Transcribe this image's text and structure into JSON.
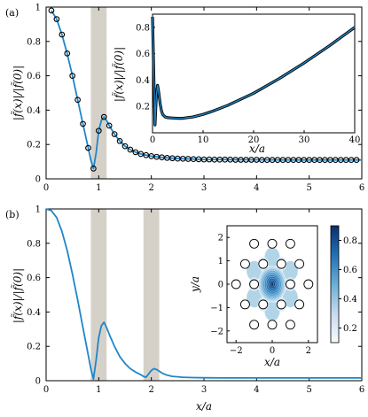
{
  "chart_data": [
    {
      "panel": "(a)",
      "type": "line",
      "ylabel": "|f̃(x)|/|f̃(0)|",
      "xlim": [
        0,
        6
      ],
      "ylim": [
        0,
        1
      ],
      "xticks": [
        "0",
        "1",
        "2",
        "3",
        "4",
        "5",
        "6"
      ],
      "yticks": [
        "0",
        "0.2",
        "0.4",
        "0.6",
        "0.8",
        "1"
      ],
      "shaded_x": [
        [
          0.85,
          1.15
        ]
      ],
      "line_color": "#1f86c8",
      "marker_style": "open circle",
      "curve": {
        "x": [
          0.1,
          0.2,
          0.3,
          0.4,
          0.5,
          0.6,
          0.7,
          0.8,
          0.85,
          0.9,
          0.95,
          1.0,
          1.05,
          1.1,
          1.15,
          1.2,
          1.3,
          1.4,
          1.5,
          1.6,
          1.7,
          1.8,
          1.9,
          2.0,
          2.2,
          2.4,
          2.6,
          2.8,
          3.0,
          3.5,
          4.0,
          4.5,
          5.0,
          5.5,
          6.0
        ],
        "y": [
          0.98,
          0.93,
          0.84,
          0.73,
          0.6,
          0.46,
          0.32,
          0.18,
          0.11,
          0.06,
          0.15,
          0.28,
          0.34,
          0.36,
          0.34,
          0.31,
          0.26,
          0.22,
          0.19,
          0.17,
          0.155,
          0.145,
          0.138,
          0.132,
          0.125,
          0.12,
          0.117,
          0.115,
          0.113,
          0.112,
          0.111,
          0.11,
          0.11,
          0.11,
          0.11
        ]
      },
      "markers": {
        "x": [
          0.1,
          0.2,
          0.3,
          0.4,
          0.5,
          0.6,
          0.7,
          0.8,
          0.9,
          1.0,
          1.1,
          1.2,
          1.3,
          1.4,
          1.5,
          1.6,
          1.7,
          1.8,
          1.9,
          2.0,
          2.1,
          2.2,
          2.3,
          2.4,
          2.5,
          2.6,
          2.7,
          2.8,
          2.9,
          3.0,
          3.1,
          3.2,
          3.3,
          3.4,
          3.5,
          3.6,
          3.7,
          3.8,
          3.9,
          4.0,
          4.1,
          4.2,
          4.3,
          4.4,
          4.5,
          4.6,
          4.7,
          4.8,
          4.9,
          5.0,
          5.1,
          5.2,
          5.3,
          5.4,
          5.5,
          5.6,
          5.7,
          5.8,
          5.9
        ],
        "y": [
          0.98,
          0.93,
          0.84,
          0.73,
          0.6,
          0.46,
          0.32,
          0.18,
          0.06,
          0.28,
          0.36,
          0.31,
          0.26,
          0.22,
          0.19,
          0.17,
          0.155,
          0.145,
          0.138,
          0.132,
          0.128,
          0.125,
          0.122,
          0.12,
          0.118,
          0.117,
          0.116,
          0.115,
          0.114,
          0.113,
          0.113,
          0.112,
          0.112,
          0.112,
          0.112,
          0.111,
          0.111,
          0.111,
          0.111,
          0.111,
          0.11,
          0.11,
          0.11,
          0.11,
          0.11,
          0.11,
          0.11,
          0.11,
          0.11,
          0.11,
          0.11,
          0.11,
          0.11,
          0.11,
          0.11,
          0.11,
          0.11,
          0.11,
          0.11
        ]
      },
      "inset": {
        "type": "line",
        "xlabel": "x/a",
        "ylabel": "|f̃(x)|/|f̃(0)|",
        "xlim": [
          0,
          40
        ],
        "ylim": [
          0,
          0.9
        ],
        "xticks": [
          "0",
          "10",
          "20",
          "30",
          "40"
        ],
        "yticks": [
          "0.2",
          "0.4",
          "0.6",
          "0.8"
        ],
        "x": [
          0,
          0.25,
          0.5,
          0.75,
          1.0,
          1.25,
          1.5,
          1.75,
          2.0,
          2.5,
          3,
          4,
          5,
          6,
          8,
          10,
          12,
          15,
          20,
          25,
          30,
          35,
          40
        ],
        "y": [
          0.88,
          0.45,
          0.06,
          0.28,
          0.36,
          0.3,
          0.22,
          0.17,
          0.14,
          0.12,
          0.115,
          0.112,
          0.11,
          0.11,
          0.12,
          0.14,
          0.165,
          0.21,
          0.3,
          0.41,
          0.53,
          0.66,
          0.8
        ]
      }
    },
    {
      "panel": "(b)",
      "type": "line",
      "xlabel": "x/a",
      "ylabel": "|f̃(x)|/|f̃(0)|",
      "xlim": [
        0,
        6
      ],
      "ylim": [
        0,
        1
      ],
      "xticks": [
        "0",
        "1",
        "2",
        "3",
        "4",
        "5",
        "6"
      ],
      "yticks": [
        "0",
        "0.2",
        "0.4",
        "0.6",
        "0.8",
        "1"
      ],
      "shaded_x": [
        [
          0.85,
          1.15
        ],
        [
          1.85,
          2.15
        ]
      ],
      "line_color": "#1f86c8",
      "curve": {
        "x": [
          0,
          0.1,
          0.2,
          0.3,
          0.4,
          0.5,
          0.6,
          0.7,
          0.8,
          0.85,
          0.9,
          0.95,
          1.0,
          1.05,
          1.1,
          1.15,
          1.2,
          1.3,
          1.4,
          1.5,
          1.6,
          1.7,
          1.8,
          1.85,
          1.9,
          1.95,
          2.0,
          2.05,
          2.1,
          2.15,
          2.2,
          2.3,
          2.4,
          2.6,
          2.8,
          3.0,
          3.5,
          4.0,
          4.5,
          5.0,
          5.5,
          6.0
        ],
        "y": [
          1.0,
          0.99,
          0.95,
          0.87,
          0.76,
          0.62,
          0.47,
          0.31,
          0.15,
          0.07,
          0.01,
          0.12,
          0.25,
          0.32,
          0.34,
          0.31,
          0.27,
          0.2,
          0.14,
          0.1,
          0.07,
          0.05,
          0.035,
          0.025,
          0.02,
          0.04,
          0.06,
          0.07,
          0.065,
          0.055,
          0.045,
          0.032,
          0.025,
          0.02,
          0.018,
          0.017,
          0.016,
          0.016,
          0.016,
          0.016,
          0.016,
          0.016
        ]
      },
      "inset": {
        "type": "heatmap",
        "xlabel": "x/a",
        "ylabel": "y/a",
        "xlim": [
          -2.5,
          2.5
        ],
        "ylim": [
          -2.5,
          2.5
        ],
        "xticks": [
          "−2",
          "0",
          "2"
        ],
        "yticks": [
          "−2",
          "−1",
          "0",
          "1",
          "2"
        ],
        "colorbar_ticks": [
          "0.2",
          "0.4",
          "0.6",
          "0.8"
        ],
        "colorbar_range": [
          0.1,
          0.9
        ],
        "colormap": [
          "#f7fbff",
          "#c6dbef",
          "#6baed6",
          "#2171b5",
          "#08306b"
        ],
        "rings": [
          {
            "r": 1,
            "count": 6
          },
          {
            "r": 1.732,
            "count": 6,
            "phase_deg": 30
          },
          {
            "r": 2,
            "count": 6
          }
        ]
      }
    }
  ],
  "labels": {
    "panel_a": "(a)",
    "panel_b": "(b)",
    "ylabel_a": "|f̃(x)|/|f̃(0)|",
    "ylabel_b": "|f̃(x)|/|f̃(0)|",
    "xlabel_b": "x/a",
    "inset_a_xlabel": "x/a",
    "inset_a_ylabel": "|f̃(x)|/|f̃(0)|",
    "inset_b_xlabel": "x/a",
    "inset_b_ylabel": "y/a"
  }
}
